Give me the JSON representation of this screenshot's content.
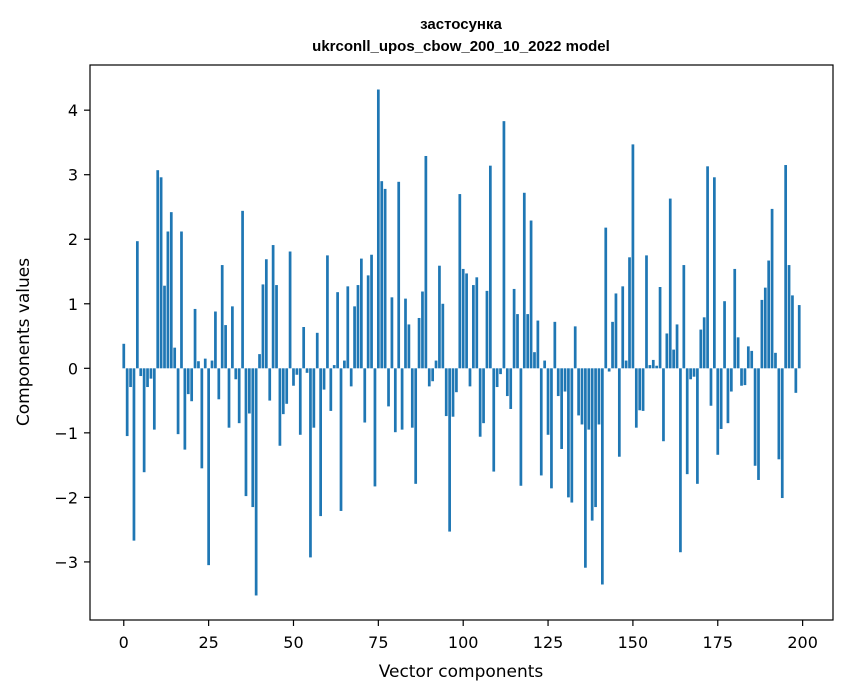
{
  "chart_data": {
    "type": "bar",
    "title_line1": "застосунка",
    "title_line2": "ukrconll_upos_cbow_200_10_2022 model",
    "xlabel": "Vector components",
    "ylabel": "Components values",
    "xlim": [
      -9.95,
      208.95
    ],
    "ylim": [
      -3.9,
      4.7
    ],
    "xticks": [
      0,
      25,
      50,
      75,
      100,
      125,
      150,
      175,
      200
    ],
    "yticks": [
      -3,
      -2,
      -1,
      0,
      1,
      2,
      3,
      4
    ],
    "ytick_labels": [
      "−3",
      "−2",
      "−1",
      "0",
      "1",
      "2",
      "3",
      "4"
    ],
    "bar_color": "#1f77b4",
    "grid": false,
    "x": [
      0,
      1,
      2,
      3,
      4,
      5,
      6,
      7,
      8,
      9,
      10,
      11,
      12,
      13,
      14,
      15,
      16,
      17,
      18,
      19,
      20,
      21,
      22,
      23,
      24,
      25,
      26,
      27,
      28,
      29,
      30,
      31,
      32,
      33,
      34,
      35,
      36,
      37,
      38,
      39,
      40,
      41,
      42,
      43,
      44,
      45,
      46,
      47,
      48,
      49,
      50,
      51,
      52,
      53,
      54,
      55,
      56,
      57,
      58,
      59,
      60,
      61,
      62,
      63,
      64,
      65,
      66,
      67,
      68,
      69,
      70,
      71,
      72,
      73,
      74,
      75,
      76,
      77,
      78,
      79,
      80,
      81,
      82,
      83,
      84,
      85,
      86,
      87,
      88,
      89,
      90,
      91,
      92,
      93,
      94,
      95,
      96,
      97,
      98,
      99,
      100,
      101,
      102,
      103,
      104,
      105,
      106,
      107,
      108,
      109,
      110,
      111,
      112,
      113,
      114,
      115,
      116,
      117,
      118,
      119,
      120,
      121,
      122,
      123,
      124,
      125,
      126,
      127,
      128,
      129,
      130,
      131,
      132,
      133,
      134,
      135,
      136,
      137,
      138,
      139,
      140,
      141,
      142,
      143,
      144,
      145,
      146,
      147,
      148,
      149,
      150,
      151,
      152,
      153,
      154,
      155,
      156,
      157,
      158,
      159,
      160,
      161,
      162,
      163,
      164,
      165,
      166,
      167,
      168,
      169,
      170,
      171,
      172,
      173,
      174,
      175,
      176,
      177,
      178,
      179,
      180,
      181,
      182,
      183,
      184,
      185,
      186,
      187,
      188,
      189,
      190,
      191,
      192,
      193,
      194,
      195,
      196,
      197,
      198,
      199
    ],
    "values": [
      0.38,
      -1.05,
      -0.29,
      -2.67,
      1.97,
      -0.12,
      -1.61,
      -0.29,
      -0.16,
      -0.95,
      3.07,
      2.96,
      1.28,
      2.12,
      2.42,
      0.32,
      -1.02,
      2.12,
      -1.26,
      -0.4,
      -0.51,
      0.92,
      0.11,
      -1.55,
      0.15,
      -3.05,
      0.12,
      0.88,
      -0.48,
      1.6,
      0.67,
      -0.92,
      0.96,
      -0.17,
      -0.85,
      2.44,
      -1.98,
      -0.7,
      -2.15,
      -3.52,
      0.22,
      1.3,
      1.69,
      -0.5,
      1.91,
      1.29,
      -1.2,
      -0.71,
      -0.55,
      1.81,
      -0.27,
      -0.1,
      -1.03,
      0.64,
      -0.07,
      -2.93,
      -0.92,
      0.55,
      -2.29,
      -0.33,
      1.75,
      -0.66,
      0.05,
      1.18,
      -2.21,
      0.12,
      1.27,
      -0.28,
      0.96,
      1.29,
      1.7,
      -0.84,
      1.44,
      1.76,
      -1.83,
      4.32,
      2.9,
      2.78,
      -0.59,
      1.1,
      -0.99,
      2.89,
      -0.95,
      1.08,
      0.68,
      -0.92,
      -1.79,
      0.78,
      1.19,
      3.29,
      -0.28,
      -0.2,
      0.12,
      1.59,
      1.0,
      -0.74,
      -2.53,
      -0.75,
      -0.37,
      2.7,
      1.54,
      1.47,
      -0.28,
      1.29,
      1.41,
      -1.06,
      -0.85,
      1.2,
      3.14,
      -1.6,
      -0.29,
      -0.09,
      3.83,
      -0.43,
      -0.63,
      1.23,
      0.84,
      -1.82,
      2.72,
      0.84,
      2.29,
      0.25,
      0.74,
      -1.66,
      0.12,
      -1.03,
      -1.86,
      0.72,
      -0.43,
      -1.25,
      -0.36,
      -2.0,
      -2.08,
      0.65,
      -0.73,
      -0.87,
      -3.09,
      -0.95,
      -2.36,
      -2.15,
      -0.87,
      -3.35,
      2.18,
      -0.05,
      0.72,
      1.16,
      -1.37,
      1.27,
      0.12,
      1.72,
      3.47,
      -0.92,
      -0.65,
      -0.66,
      1.75,
      0.05,
      0.13,
      0.04,
      1.26,
      -1.13,
      0.54,
      2.63,
      0.29,
      0.68,
      -2.85,
      1.6,
      -1.64,
      -0.17,
      -0.13,
      -1.79,
      0.6,
      0.79,
      3.13,
      -0.58,
      2.96,
      -1.34,
      -0.94,
      1.04,
      -0.85,
      -0.36,
      1.54,
      0.48,
      -0.27,
      -0.26,
      0.34,
      0.27,
      -1.51,
      -1.73,
      1.06,
      1.25,
      1.67,
      2.47,
      0.24,
      -1.41,
      -2.01,
      3.15,
      1.6,
      1.13,
      -0.38,
      0.98
    ]
  }
}
